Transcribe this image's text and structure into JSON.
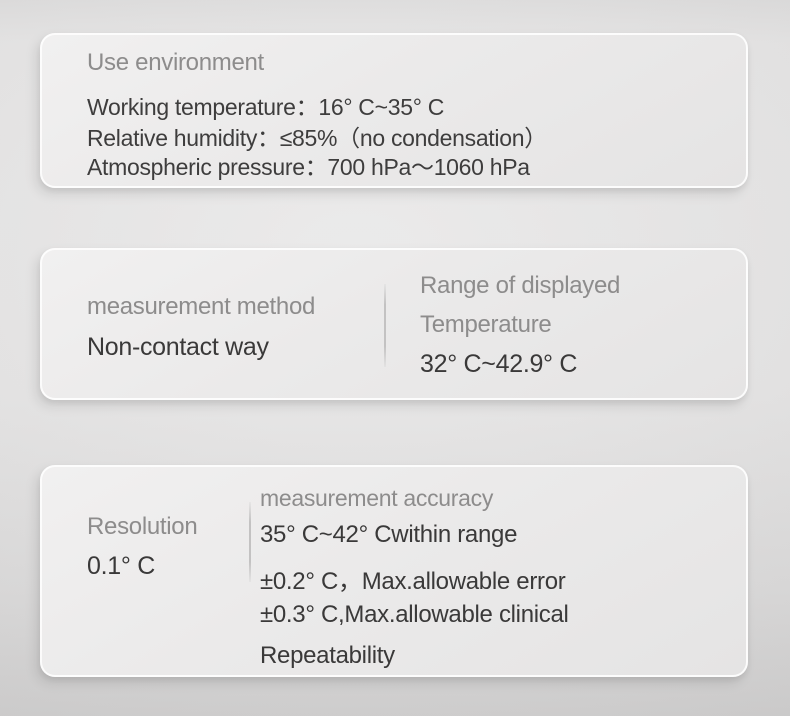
{
  "colors": {
    "background": "#e2e1e1",
    "card_fill": "#eceleb",
    "card_border": "#ffffff",
    "heading_text": "#8d8c8c",
    "body_text": "#3e3d3d",
    "divider": "#c3c2c2"
  },
  "cards": [
    {
      "title": "Use environment",
      "lines": [
        "Working temperature：16° C~35° C",
        "Relative humidity：≤85%（no condensation）",
        "Atmospheric pressure：700 hPa～1060 hPa"
      ]
    },
    {
      "left": {
        "label": "measurement method",
        "value": "Non-contact way"
      },
      "right": {
        "label_line1": "Range of displayed",
        "label_line2": "Temperature",
        "value": "32° C~42.9° C"
      }
    },
    {
      "left": {
        "label": "Resolution",
        "value": "0.1° C"
      },
      "right": {
        "title": "measurement accuracy",
        "lines": [
          "35° C~42° Cwithin range",
          "±0.2° C，Max.allowable error",
          "±0.3° C,Max.allowable clinical",
          "Repeatability"
        ]
      }
    }
  ]
}
